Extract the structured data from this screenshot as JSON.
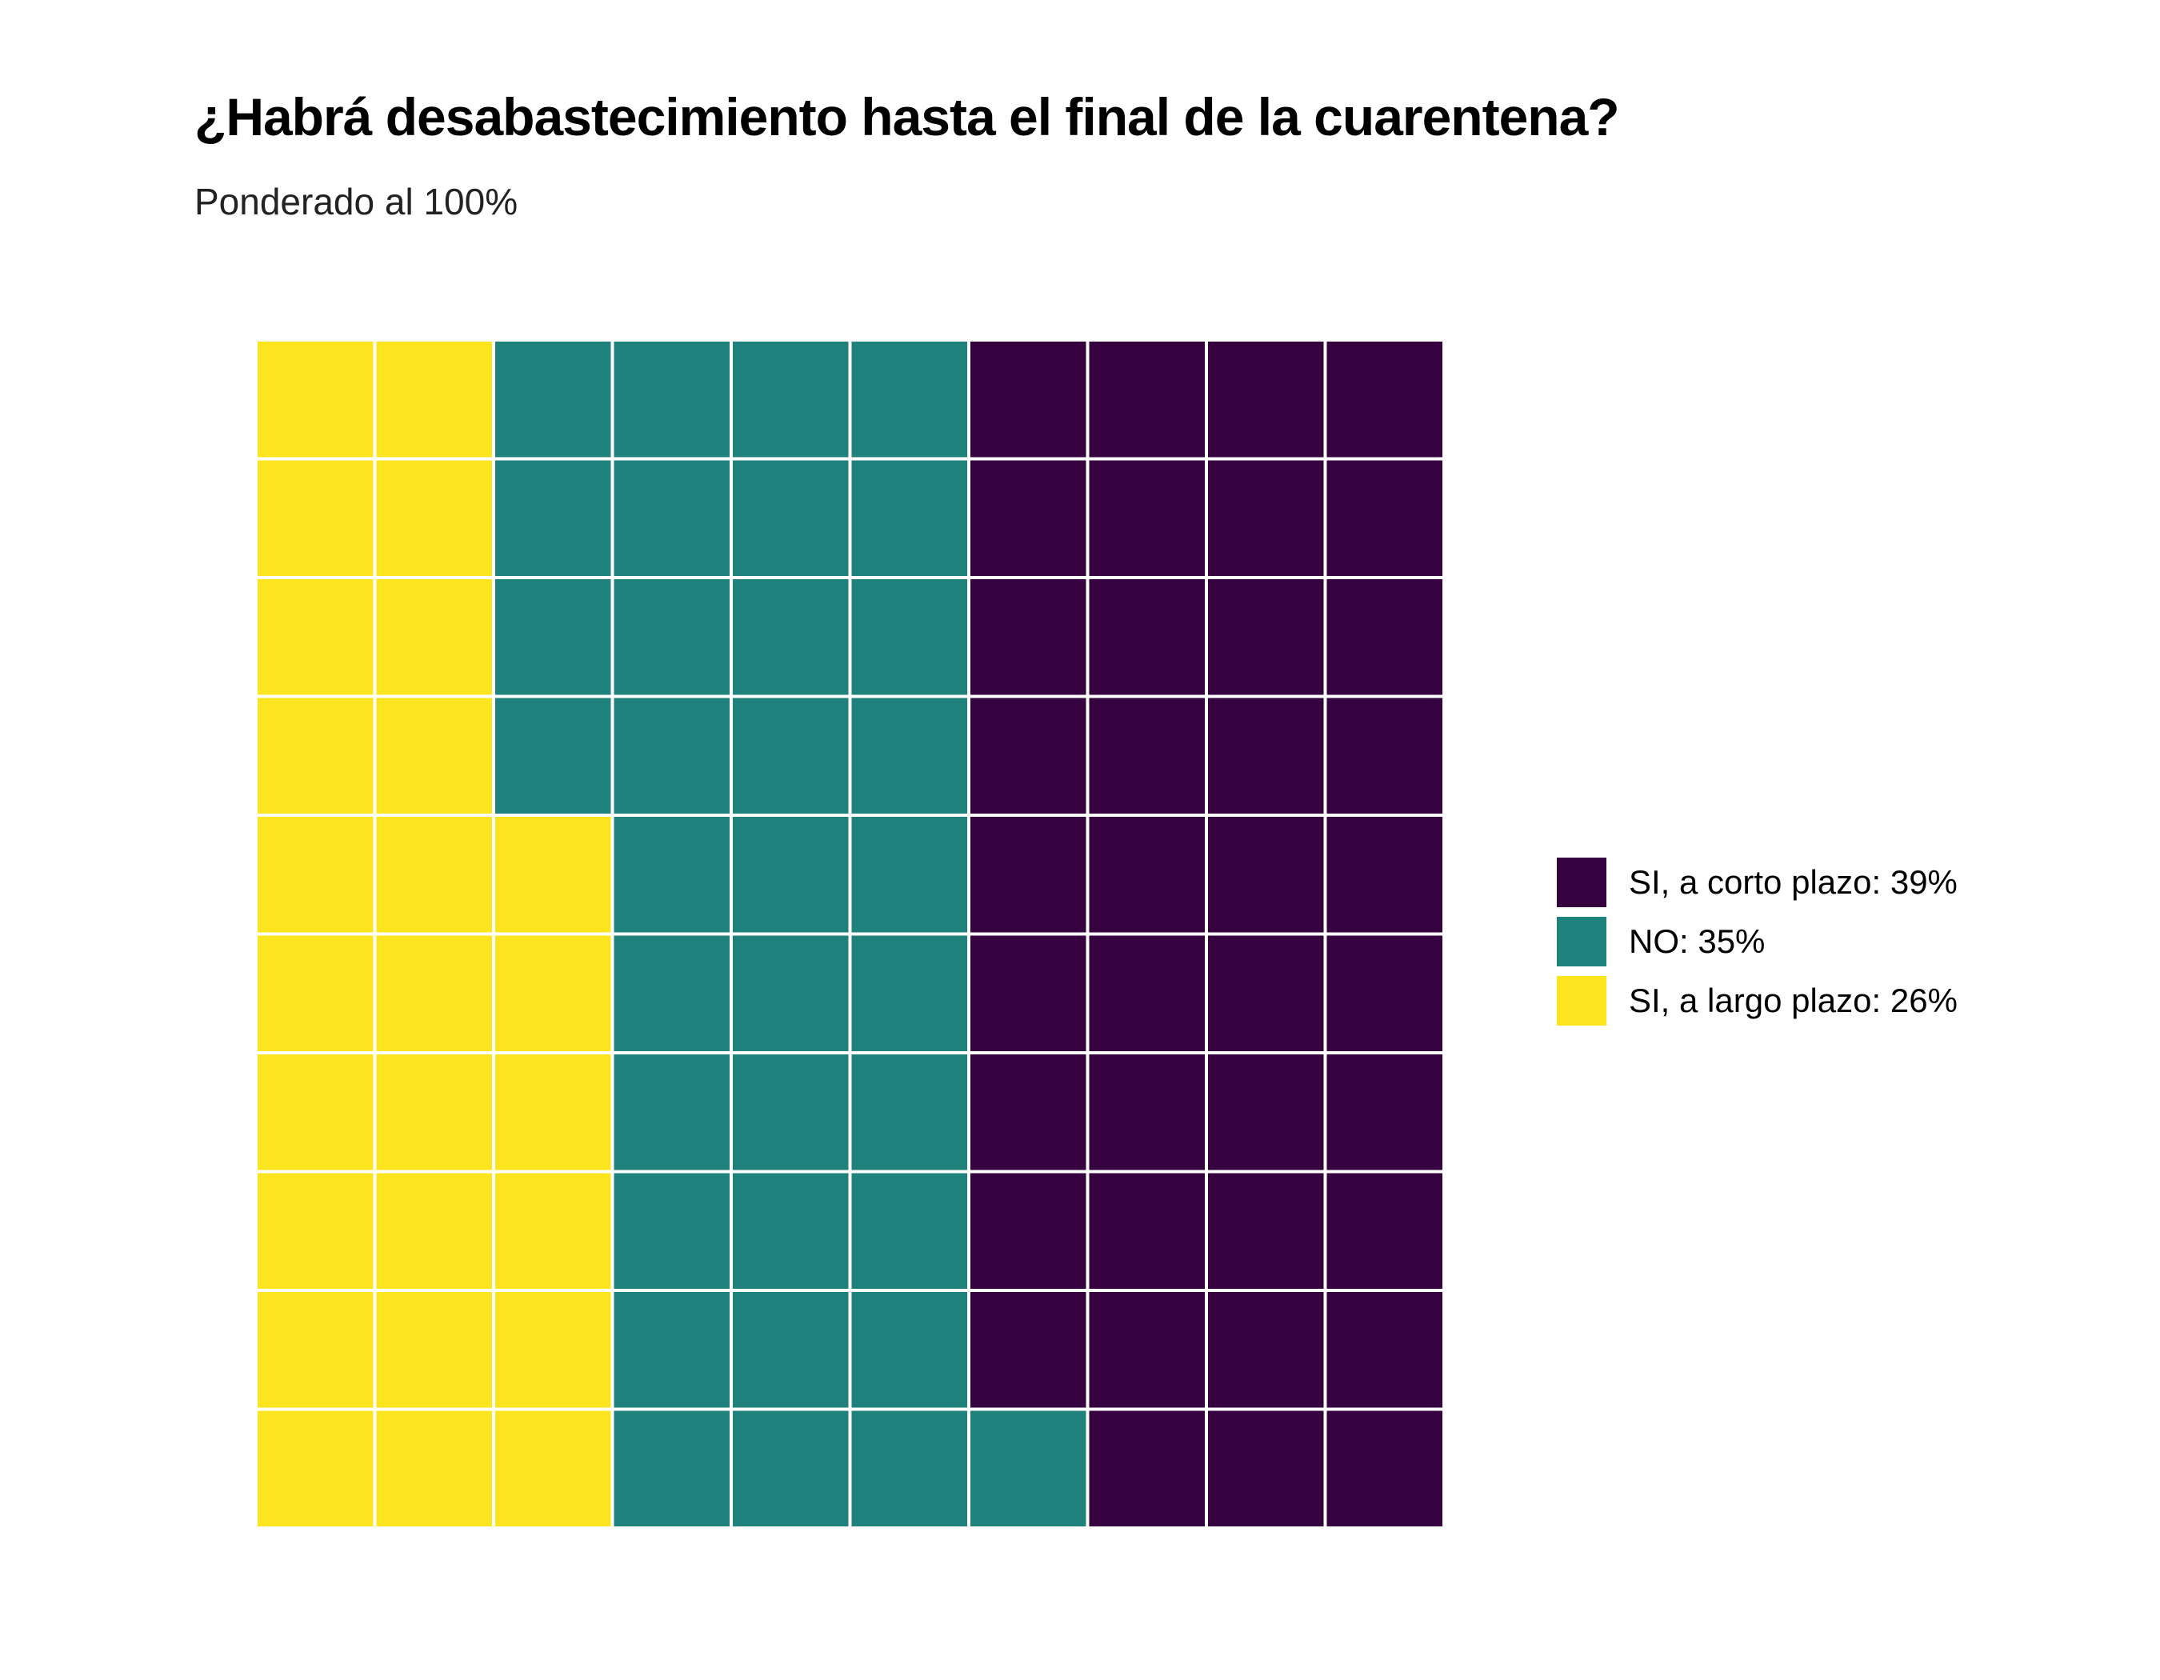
{
  "header": {
    "title": "¿Habrá desabastecimiento hasta el final de la cuarentena?",
    "subtitle": "Ponderado al 100%"
  },
  "chart_data": {
    "type": "waffle",
    "rows": 10,
    "columns": 10,
    "cell_unit": 1,
    "fill_order": "column-major, starting at right column top, moving left",
    "series": [
      {
        "name": "SI, a corto plazo",
        "value": 39,
        "label": "SI, a corto plazo: 39%",
        "color": "#35013f"
      },
      {
        "name": "NO",
        "value": 35,
        "label": "NO: 35%",
        "color": "#1f817b"
      },
      {
        "name": "SI, a largo plazo",
        "value": 26,
        "label": "SI, a largo plazo: 26%",
        "color": "#fce51e"
      }
    ],
    "legend_position": "right",
    "grid": false
  }
}
